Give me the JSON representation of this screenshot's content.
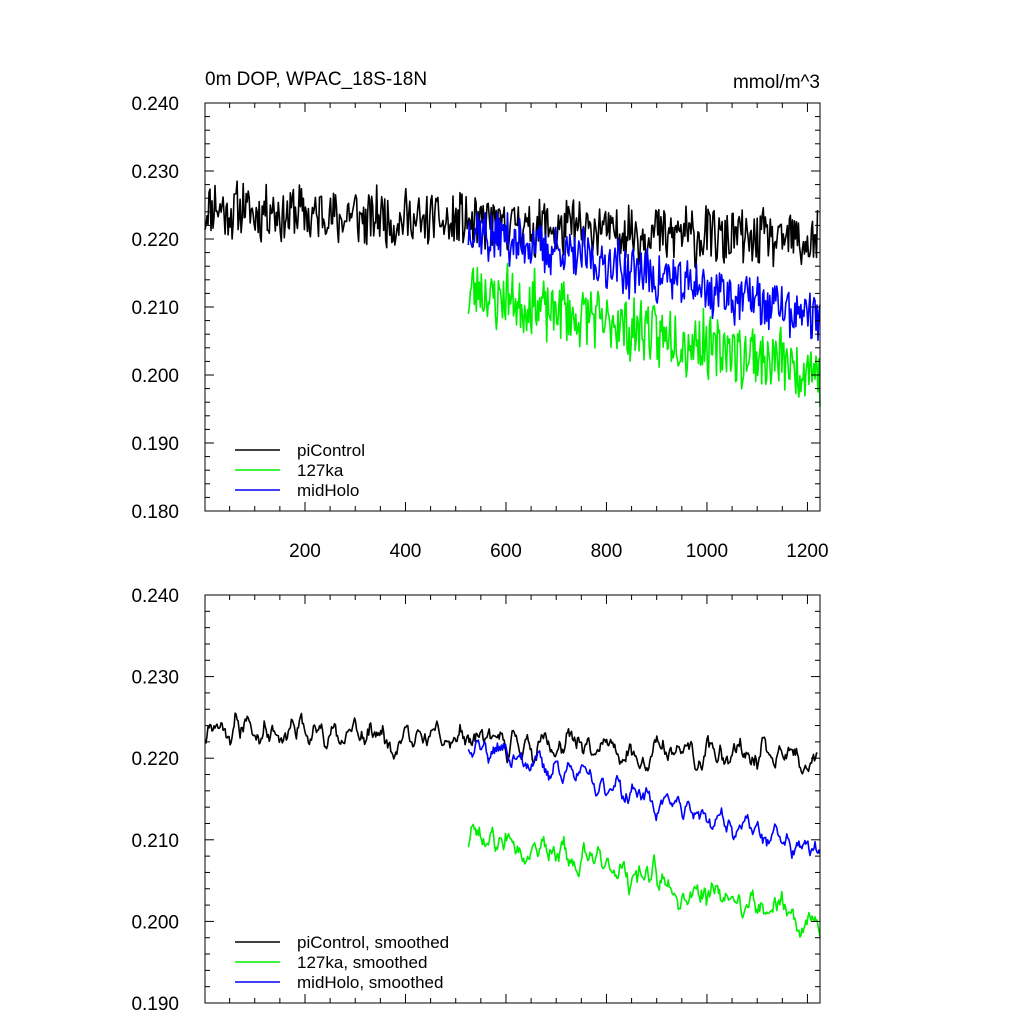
{
  "chart_data": [
    {
      "type": "line",
      "title": "0m DOP, WPAC_18S-18N",
      "units": "mmol/m^3",
      "xlabel": "",
      "ylabel": "",
      "xlim": [
        1,
        1225
      ],
      "ylim": [
        0.18,
        0.24
      ],
      "x_ticks": [
        200,
        400,
        600,
        800,
        1000,
        1200
      ],
      "x_tick_labels": [
        "200",
        "400",
        "600",
        "800",
        "1000",
        "1200"
      ],
      "y_ticks": [
        0.18,
        0.19,
        0.2,
        0.21,
        0.22,
        0.23,
        0.24
      ],
      "y_tick_labels": [
        "0.180",
        "0.190",
        "0.200",
        "0.210",
        "0.220",
        "0.230",
        "0.240"
      ],
      "legend_position": "bottom-left",
      "series": [
        {
          "name": "piControl",
          "color": "#000000",
          "x_start": 1,
          "x_end": 1220,
          "mean_start": 0.2245,
          "mean_end": 0.2195,
          "amp": 0.0048,
          "seed": 11,
          "smooth": 0
        },
        {
          "name": "127ka",
          "color": "#00ee00",
          "x_start": 525,
          "x_end": 1225,
          "mean_start": 0.2125,
          "mean_end": 0.2005,
          "amp": 0.0055,
          "seed": 23,
          "smooth": 0
        },
        {
          "name": "midHolo",
          "color": "#0000ff",
          "x_start": 525,
          "x_end": 1225,
          "mean_start": 0.2215,
          "mean_end": 0.2085,
          "amp": 0.0045,
          "seed": 37,
          "smooth": 0
        }
      ]
    },
    {
      "type": "line",
      "title": "",
      "units": "",
      "xlabel": "",
      "ylabel": "",
      "xlim": [
        1,
        1225
      ],
      "ylim": [
        0.19,
        0.24
      ],
      "x_ticks": [
        200,
        400,
        600,
        800,
        1000,
        1200
      ],
      "x_tick_labels": [],
      "y_ticks": [
        0.19,
        0.2,
        0.21,
        0.22,
        0.23,
        0.24
      ],
      "y_tick_labels": [
        "0.190",
        "0.200",
        "0.210",
        "0.220",
        "0.230",
        "0.240"
      ],
      "legend_position": "bottom-left",
      "series": [
        {
          "name": "piControl, smoothed",
          "color": "#000000",
          "x_start": 1,
          "x_end": 1220,
          "mean_start": 0.224,
          "mean_end": 0.2195,
          "amp": 0.0045,
          "seed": 11,
          "smooth": 2
        },
        {
          "name": "127ka, smoothed",
          "color": "#00ee00",
          "x_start": 525,
          "x_end": 1225,
          "mean_start": 0.211,
          "mean_end": 0.2,
          "amp": 0.005,
          "seed": 23,
          "smooth": 2
        },
        {
          "name": "midHolo, smoothed",
          "color": "#0000ff",
          "x_start": 525,
          "x_end": 1225,
          "mean_start": 0.222,
          "mean_end": 0.2085,
          "amp": 0.004,
          "seed": 37,
          "smooth": 2
        }
      ]
    }
  ]
}
